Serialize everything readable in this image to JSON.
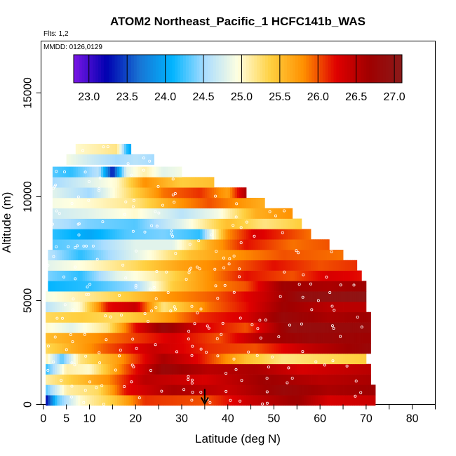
{
  "chart_data": {
    "type": "heatmap",
    "title": "ATOM2 Northeast_Pacific_1 HCFC141b_WAS",
    "flights_label": "Flts: 1,2",
    "mmdd_label": "MMDD: 0126,0129",
    "xlabel": "Latitude (deg N)",
    "ylabel": "Altitude (m)",
    "xlim": [
      -0.5,
      85
    ],
    "ylim": [
      0,
      17500
    ],
    "x_ticks": [
      0,
      5,
      10,
      20,
      30,
      40,
      50,
      60,
      70,
      80
    ],
    "x_minor_ticks": [
      15,
      25,
      35,
      45,
      55,
      65,
      75,
      85
    ],
    "y_ticks": [
      0,
      5000,
      10000,
      15000
    ],
    "colorbar": {
      "min": 22.8,
      "max": 27.1,
      "ticks": [
        "23.0",
        "23.5",
        "24.0",
        "24.5",
        "25.0",
        "25.5",
        "26.0",
        "26.5",
        "27.0"
      ],
      "tick_values": [
        23.0,
        23.5,
        24.0,
        24.5,
        25.0,
        25.5,
        26.0,
        26.5,
        27.0
      ]
    },
    "colors": [
      "#7b16e6",
      "#0000b0",
      "#1874d4",
      "#00b4ff",
      "#aaddff",
      "#ffffe0",
      "#ffd040",
      "#ff9000",
      "#e00000",
      "#a00000",
      "#8b1a1a"
    ],
    "arrow_latitude": 35,
    "rows": [
      {
        "alt": 200,
        "lat_start": 0.5,
        "lat_end": 72,
        "knots": [
          [
            0.5,
            23.2
          ],
          [
            3,
            24.3
          ],
          [
            8,
            25.0
          ],
          [
            15,
            25.4
          ],
          [
            22,
            26.1
          ],
          [
            35,
            26.0
          ],
          [
            45,
            26.4
          ],
          [
            55,
            26.7
          ],
          [
            62,
            26.3
          ],
          [
            72,
            26.4
          ]
        ]
      },
      {
        "alt": 700,
        "lat_start": 0.5,
        "lat_end": 72,
        "knots": [
          [
            0.5,
            24.3
          ],
          [
            5,
            25.1
          ],
          [
            12,
            25.3
          ],
          [
            18,
            26.2
          ],
          [
            28,
            26.6
          ],
          [
            40,
            26.4
          ],
          [
            52,
            26.8
          ],
          [
            62,
            26.6
          ],
          [
            72,
            26.7
          ]
        ]
      },
      {
        "alt": 1200,
        "lat_start": 0.5,
        "lat_end": 71,
        "knots": [
          [
            0.5,
            25.1
          ],
          [
            6,
            25.4
          ],
          [
            14,
            25.8
          ],
          [
            22,
            26.5
          ],
          [
            35,
            26.3
          ],
          [
            48,
            26.7
          ],
          [
            60,
            26.5
          ],
          [
            71,
            26.6
          ]
        ]
      },
      {
        "alt": 1700,
        "lat_start": 0.5,
        "lat_end": 71,
        "knots": [
          [
            0.5,
            24.2
          ],
          [
            5,
            25.1
          ],
          [
            10,
            25.0
          ],
          [
            18,
            26.0
          ],
          [
            26,
            26.8
          ],
          [
            36,
            26.5
          ],
          [
            46,
            26.6
          ],
          [
            56,
            26.3
          ],
          [
            71,
            26.5
          ]
        ]
      },
      {
        "alt": 2200,
        "lat_start": 0.5,
        "lat_end": 70,
        "knots": [
          [
            0.5,
            25.1
          ],
          [
            4,
            24.3
          ],
          [
            8,
            25.2
          ],
          [
            16,
            25.7
          ],
          [
            26,
            26.6
          ],
          [
            34,
            26.2
          ],
          [
            44,
            25.5
          ],
          [
            52,
            25.2
          ],
          [
            60,
            25.3
          ],
          [
            70,
            25.4
          ]
        ]
      },
      {
        "alt": 2700,
        "lat_start": 0.5,
        "lat_end": 71,
        "knots": [
          [
            0.5,
            25.3
          ],
          [
            6,
            25.6
          ],
          [
            14,
            26.0
          ],
          [
            24,
            26.4
          ],
          [
            36,
            26.1
          ],
          [
            46,
            26.0
          ],
          [
            56,
            26.4
          ],
          [
            71,
            26.8
          ]
        ]
      },
      {
        "alt": 3200,
        "lat_start": 0.5,
        "lat_end": 71,
        "knots": [
          [
            0.5,
            25.5
          ],
          [
            8,
            25.7
          ],
          [
            18,
            26.0
          ],
          [
            28,
            26.3
          ],
          [
            38,
            26.0
          ],
          [
            48,
            26.6
          ],
          [
            58,
            26.8
          ],
          [
            71,
            26.7
          ]
        ]
      },
      {
        "alt": 3700,
        "lat_start": 0.5,
        "lat_end": 71,
        "knots": [
          [
            0.5,
            25.0
          ],
          [
            6,
            24.8
          ],
          [
            14,
            25.2
          ],
          [
            20,
            26.2
          ],
          [
            26,
            26.8
          ],
          [
            34,
            26.3
          ],
          [
            44,
            26.0
          ],
          [
            54,
            26.9
          ],
          [
            71,
            26.8
          ]
        ]
      },
      {
        "alt": 4200,
        "lat_start": 0.5,
        "lat_end": 71,
        "knots": [
          [
            0.5,
            25.3
          ],
          [
            8,
            25.4
          ],
          [
            16,
            25.3
          ],
          [
            24,
            25.6
          ],
          [
            34,
            26.1
          ],
          [
            44,
            26.3
          ],
          [
            52,
            26.8
          ],
          [
            62,
            26.6
          ],
          [
            71,
            26.7
          ]
        ]
      },
      {
        "alt": 4700,
        "lat_start": 0.5,
        "lat_end": 70,
        "knots": [
          [
            0.5,
            24.6
          ],
          [
            8,
            25.0
          ],
          [
            14,
            26.2
          ],
          [
            20,
            26.4
          ],
          [
            26,
            25.2
          ],
          [
            36,
            25.9
          ],
          [
            44,
            26.2
          ],
          [
            52,
            26.7
          ],
          [
            62,
            26.5
          ],
          [
            70,
            26.5
          ]
        ]
      },
      {
        "alt": 5200,
        "lat_start": 0.5,
        "lat_end": 70,
        "knots": [
          [
            0.5,
            24.9
          ],
          [
            8,
            25.1
          ],
          [
            18,
            25.4
          ],
          [
            28,
            25.8
          ],
          [
            38,
            26.0
          ],
          [
            48,
            26.4
          ],
          [
            56,
            26.9
          ],
          [
            70,
            27.0
          ]
        ]
      },
      {
        "alt": 5700,
        "lat_start": 1,
        "lat_end": 70,
        "knots": [
          [
            1,
            24.1
          ],
          [
            10,
            24.2
          ],
          [
            20,
            24.5
          ],
          [
            28,
            25.4
          ],
          [
            36,
            25.8
          ],
          [
            44,
            26.0
          ],
          [
            52,
            26.7
          ],
          [
            62,
            26.6
          ],
          [
            70,
            26.7
          ]
        ]
      },
      {
        "alt": 6200,
        "lat_start": 1,
        "lat_end": 69,
        "knots": [
          [
            1,
            24.4
          ],
          [
            8,
            24.2
          ],
          [
            16,
            24.8
          ],
          [
            24,
            25.1
          ],
          [
            34,
            25.7
          ],
          [
            44,
            26.2
          ],
          [
            54,
            26.0
          ],
          [
            62,
            26.3
          ],
          [
            69,
            26.2
          ]
        ]
      },
      {
        "alt": 6700,
        "lat_start": 1,
        "lat_end": 68,
        "knots": [
          [
            1,
            24.8
          ],
          [
            10,
            25.0
          ],
          [
            20,
            25.3
          ],
          [
            30,
            25.7
          ],
          [
            40,
            25.9
          ],
          [
            50,
            26.2
          ],
          [
            60,
            26.0
          ],
          [
            68,
            26.1
          ]
        ]
      },
      {
        "alt": 7200,
        "lat_start": 1,
        "lat_end": 65,
        "knots": [
          [
            1,
            24.6
          ],
          [
            8,
            24.2
          ],
          [
            16,
            24.6
          ],
          [
            24,
            25.0
          ],
          [
            32,
            25.5
          ],
          [
            42,
            25.8
          ],
          [
            52,
            26.0
          ],
          [
            65,
            25.9
          ]
        ]
      },
      {
        "alt": 7700,
        "lat_start": 2,
        "lat_end": 62,
        "knots": [
          [
            2,
            24.3
          ],
          [
            10,
            24.4
          ],
          [
            20,
            24.8
          ],
          [
            28,
            24.8
          ],
          [
            36,
            25.6
          ],
          [
            44,
            26.2
          ],
          [
            54,
            25.9
          ],
          [
            62,
            26.0
          ]
        ]
      },
      {
        "alt": 8200,
        "lat_start": 2,
        "lat_end": 58,
        "knots": [
          [
            2,
            24.2
          ],
          [
            10,
            24.0
          ],
          [
            18,
            24.3
          ],
          [
            26,
            24.4
          ],
          [
            34,
            24.2
          ],
          [
            40,
            25.8
          ],
          [
            46,
            26.3
          ],
          [
            58,
            25.9
          ]
        ]
      },
      {
        "alt": 8700,
        "lat_start": 2,
        "lat_end": 56,
        "knots": [
          [
            2,
            24.6
          ],
          [
            10,
            24.4
          ],
          [
            20,
            24.3
          ],
          [
            30,
            24.8
          ],
          [
            40,
            25.5
          ],
          [
            48,
            25.2
          ],
          [
            56,
            25.4
          ]
        ]
      },
      {
        "alt": 9200,
        "lat_start": 2,
        "lat_end": 54,
        "knots": [
          [
            2,
            24.7
          ],
          [
            10,
            24.8
          ],
          [
            20,
            25.0
          ],
          [
            30,
            24.6
          ],
          [
            38,
            24.9
          ],
          [
            46,
            25.6
          ],
          [
            54,
            25.8
          ]
        ]
      },
      {
        "alt": 9700,
        "lat_start": 2,
        "lat_end": 48,
        "knots": [
          [
            2,
            24.9
          ],
          [
            10,
            25.0
          ],
          [
            20,
            25.2
          ],
          [
            30,
            25.8
          ],
          [
            36,
            26.0
          ],
          [
            42,
            25.8
          ],
          [
            48,
            25.6
          ]
        ]
      },
      {
        "alt": 10200,
        "lat_start": 2,
        "lat_end": 44,
        "knots": [
          [
            2,
            24.8
          ],
          [
            10,
            24.5
          ],
          [
            18,
            25.2
          ],
          [
            26,
            25.9
          ],
          [
            34,
            26.1
          ],
          [
            40,
            25.7
          ],
          [
            44,
            26.6
          ]
        ]
      },
      {
        "alt": 10700,
        "lat_start": 2,
        "lat_end": 37,
        "knots": [
          [
            2,
            24.5
          ],
          [
            8,
            24.7
          ],
          [
            16,
            25.0
          ],
          [
            22,
            25.8
          ],
          [
            30,
            25.4
          ],
          [
            37,
            25.5
          ]
        ]
      },
      {
        "alt": 11200,
        "lat_start": 2,
        "lat_end": 30,
        "knots": [
          [
            2,
            24.3
          ],
          [
            6,
            24.2
          ],
          [
            12,
            24.6
          ],
          [
            15,
            23.3
          ],
          [
            18,
            24.8
          ],
          [
            22,
            25.1
          ],
          [
            26,
            24.8
          ],
          [
            30,
            24.9
          ]
        ]
      },
      {
        "alt": 11800,
        "lat_start": 5,
        "lat_end": 24,
        "knots": [
          [
            5,
            24.9
          ],
          [
            10,
            24.7
          ],
          [
            16,
            24.5
          ],
          [
            20,
            24.6
          ],
          [
            24,
            24.5
          ]
        ]
      },
      {
        "alt": 12300,
        "lat_start": 7,
        "lat_end": 19,
        "knots": [
          [
            7,
            25.0
          ],
          [
            12,
            25.1
          ],
          [
            16,
            25.2
          ],
          [
            18,
            24.2
          ],
          [
            19,
            24.0
          ]
        ]
      }
    ]
  }
}
